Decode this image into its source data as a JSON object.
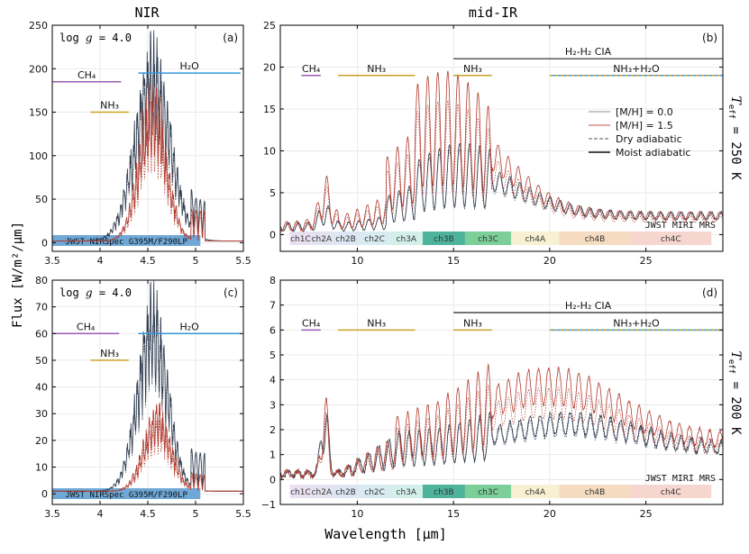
{
  "figure": {
    "col_titles": [
      "NIR",
      "mid-IR"
    ],
    "ylabel": "Flux [W/m²/μm]",
    "xlabel": "Wavelength [μm]",
    "row_labels": [
      {
        "main": "T",
        "sub": "eff",
        "rest": " = 250 K"
      },
      {
        "main": "T",
        "sub": "eff",
        "rest": " = 200 K"
      }
    ]
  },
  "legend": [
    {
      "label": "[M/H] = 0.0",
      "color": "#8c8c8c",
      "dash": "solid"
    },
    {
      "label": "[M/H] = 1.5",
      "color": "#c0504d",
      "dash": "solid"
    },
    {
      "label": "Dry adiabatic",
      "color": "#555555",
      "dash": "dashed"
    },
    {
      "label": "Moist adiabatic",
      "color": "#333333",
      "dash": "solid-thick"
    }
  ],
  "colors": {
    "solar": "#2e3b4e",
    "enriched": "#b03a2e",
    "ch4": "#9b59b6",
    "h2o": "#3498db",
    "nh3": "#c9a227",
    "cia": "#222222",
    "nirspec": "#6fa8d6"
  },
  "chart_data": [
    {
      "id": "a",
      "type": "line",
      "panel_label": "(a)",
      "annotation": "log g = 4.0",
      "xlim": [
        3.5,
        5.5
      ],
      "ylim": [
        -10,
        250
      ],
      "xticks": [
        3.5,
        4.0,
        4.5,
        5.0,
        5.5
      ],
      "yticks": [
        0,
        50,
        100,
        150,
        200,
        250
      ],
      "bands": [
        {
          "label": "CH₄",
          "x0": 3.5,
          "x1": 4.22,
          "y": 185,
          "color": "#9b59b6"
        },
        {
          "label": "H₂O",
          "x0": 4.4,
          "x1": 5.47,
          "y": 195,
          "color": "#3498db"
        },
        {
          "label": "NH₃",
          "x0": 3.9,
          "x1": 4.3,
          "y": 150,
          "color": "#c9a227"
        }
      ],
      "instrument": {
        "label": "JWST NIRSpec G395M/F290LP",
        "x0": 3.5,
        "x1": 5.05
      },
      "series": [
        {
          "name": "[M/H] = 0.0 moist",
          "peak_x": 4.55,
          "peak": 215,
          "width": 0.26,
          "continuum": 2
        },
        {
          "name": "[M/H] = 1.5 moist",
          "peak_x": 4.55,
          "peak": 170,
          "width": 0.2,
          "continuum": 2
        }
      ]
    },
    {
      "id": "b",
      "type": "line",
      "panel_label": "(b)",
      "xlim": [
        6,
        29
      ],
      "ylim": [
        -2,
        25
      ],
      "xticks": [
        10,
        15,
        20,
        25
      ],
      "yticks": [
        0,
        5,
        10,
        15,
        20,
        25
      ],
      "cia": {
        "label": "H₂-H₂ CIA",
        "x0": 15,
        "x1": 29,
        "y": 21
      },
      "bands": [
        {
          "label": "CH₄",
          "x0": 7.1,
          "x1": 8.1,
          "y": 19,
          "color": "#9b59b6"
        },
        {
          "label": "NH₃",
          "x0": 9,
          "x1": 13,
          "y": 19,
          "color": "#c9a227"
        },
        {
          "label": "NH₃",
          "x0": 15,
          "x1": 17,
          "y": 19,
          "color": "#c9a227"
        },
        {
          "label": "NH₃+H₂O",
          "x0": 20,
          "x1": 29,
          "y": 19,
          "color": "#3498db"
        }
      ],
      "instrument": {
        "label": "JWST MIRI MRS"
      },
      "series": [
        {
          "name": "[M/H] = 0.0",
          "peak": 9.5,
          "peak_x": 15.5,
          "tail": 3
        },
        {
          "name": "[M/H] = 1.5",
          "peak": 17,
          "peak_x": 14.5,
          "tail": 3
        }
      ]
    },
    {
      "id": "c",
      "type": "line",
      "panel_label": "(c)",
      "annotation": "log g = 4.0",
      "xlim": [
        3.5,
        5.5
      ],
      "ylim": [
        -4,
        80
      ],
      "xticks": [
        3.5,
        4.0,
        4.5,
        5.0,
        5.5
      ],
      "yticks": [
        0,
        10,
        20,
        30,
        40,
        50,
        60,
        70,
        80
      ],
      "bands": [
        {
          "label": "CH₄",
          "x0": 3.5,
          "x1": 4.2,
          "y": 60,
          "color": "#9b59b6"
        },
        {
          "label": "H₂O",
          "x0": 4.4,
          "x1": 5.47,
          "y": 60,
          "color": "#3498db"
        },
        {
          "label": "NH₃",
          "x0": 3.9,
          "x1": 4.3,
          "y": 50,
          "color": "#c9a227"
        }
      ],
      "instrument": {
        "label": "JWST NIRSpec G395M/F290LP",
        "x0": 3.5,
        "x1": 5.05
      },
      "series": [
        {
          "name": "[M/H] = 0.0 moist",
          "peak_x": 4.55,
          "peak": 70,
          "width": 0.22,
          "continuum": 1
        },
        {
          "name": "[M/H] = 1.5 moist",
          "peak_x": 4.6,
          "peak": 30,
          "width": 0.2,
          "continuum": 1
        }
      ]
    },
    {
      "id": "d",
      "type": "line",
      "panel_label": "(d)",
      "xlim": [
        6,
        29
      ],
      "ylim": [
        -1,
        8
      ],
      "xticks": [
        10,
        15,
        20,
        25
      ],
      "yticks": [
        -1,
        0,
        1,
        2,
        3,
        4,
        5,
        6,
        7,
        8
      ],
      "cia": {
        "label": "H₂-H₂ CIA",
        "x0": 15,
        "x1": 29,
        "y": 6.7
      },
      "bands": [
        {
          "label": "CH₄",
          "x0": 7.1,
          "x1": 8.1,
          "y": 6.0,
          "color": "#9b59b6"
        },
        {
          "label": "NH₃",
          "x0": 9,
          "x1": 13,
          "y": 6.0,
          "color": "#c9a227"
        },
        {
          "label": "NH₃",
          "x0": 15,
          "x1": 17,
          "y": 6.0,
          "color": "#c9a227"
        },
        {
          "label": "NH₃+H₂O",
          "x0": 20,
          "x1": 29,
          "y": 6.0,
          "color": "#3498db"
        }
      ],
      "instrument": {
        "label": "JWST MIRI MRS"
      },
      "series": [
        {
          "name": "[M/H] = 0.0",
          "peak": 3.0,
          "peak_x": 21,
          "tail": 1.6
        },
        {
          "name": "[M/H] = 1.5",
          "peak": 5.0,
          "peak_x": 20,
          "tail": 2.0
        }
      ]
    }
  ],
  "miri_channels": [
    {
      "label": "ch1C",
      "x0": 6.5,
      "x1": 7.6,
      "color": "#e8dff0"
    },
    {
      "label": "ch2A",
      "x0": 7.6,
      "x1": 8.7,
      "color": "#e3e3ef"
    },
    {
      "label": "ch2B",
      "x0": 8.7,
      "x1": 10.1,
      "color": "#dde6f2"
    },
    {
      "label": "ch2C",
      "x0": 10.1,
      "x1": 11.7,
      "color": "#d8ebf0"
    },
    {
      "label": "ch3A",
      "x0": 11.7,
      "x1": 13.4,
      "color": "#d3efe9"
    },
    {
      "label": "ch3B",
      "x0": 13.4,
      "x1": 15.6,
      "color": "#4db39a"
    },
    {
      "label": "ch3C",
      "x0": 15.6,
      "x1": 18.0,
      "color": "#7ccf99"
    },
    {
      "label": "ch4A",
      "x0": 18.0,
      "x1": 20.5,
      "color": "#f7f1d2"
    },
    {
      "label": "ch4B",
      "x0": 20.5,
      "x1": 24.2,
      "color": "#f5dcc0"
    },
    {
      "label": "ch4C",
      "x0": 24.2,
      "x1": 28.4,
      "color": "#f7d6d0"
    }
  ]
}
